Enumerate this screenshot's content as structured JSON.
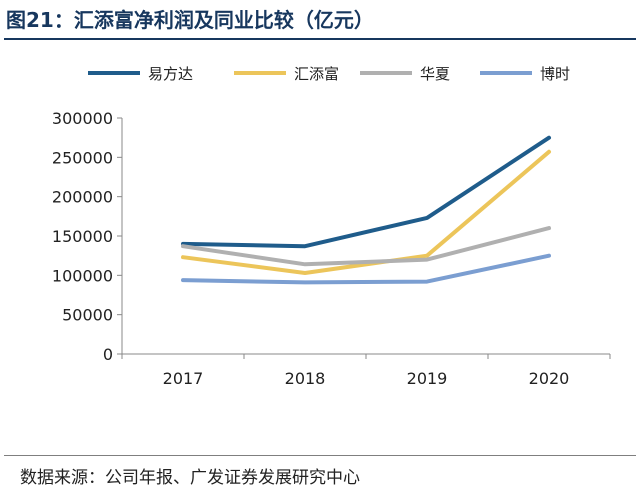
{
  "title": "图21：汇添富净利润及同业比较（亿元）",
  "source": "数据来源：公司年报、广发证券发展研究中心",
  "colors": {
    "title": "#17375e",
    "yifangda": "#1f5c8b",
    "huitianfu": "#ecc55a",
    "huaxia": "#b0b0b0",
    "boshi": "#7b9ed1"
  },
  "chart_data": {
    "type": "line",
    "title": "汇添富净利润及同业比较（亿元）",
    "categories": [
      "2017",
      "2018",
      "2019",
      "2020"
    ],
    "series": [
      {
        "name": "易方达",
        "color": "#1f5c8b",
        "values": [
          140000,
          137000,
          173000,
          275000
        ]
      },
      {
        "name": "汇添富",
        "color": "#ecc55a",
        "values": [
          123000,
          103000,
          125000,
          257000
        ]
      },
      {
        "name": "华夏",
        "color": "#b0b0b0",
        "values": [
          137000,
          114000,
          120000,
          160000
        ]
      },
      {
        "name": "博时",
        "color": "#7b9ed1",
        "values": [
          94000,
          91000,
          92000,
          125000
        ]
      }
    ],
    "ylim": [
      0,
      300000
    ],
    "yticks": [
      "300000",
      "250000",
      "200000",
      "150000",
      "100000",
      "50000",
      "0"
    ],
    "ytick_values": [
      300000,
      250000,
      200000,
      150000,
      100000,
      50000,
      0
    ],
    "xlabel": "",
    "ylabel": "",
    "legend": "top",
    "grid": false
  }
}
